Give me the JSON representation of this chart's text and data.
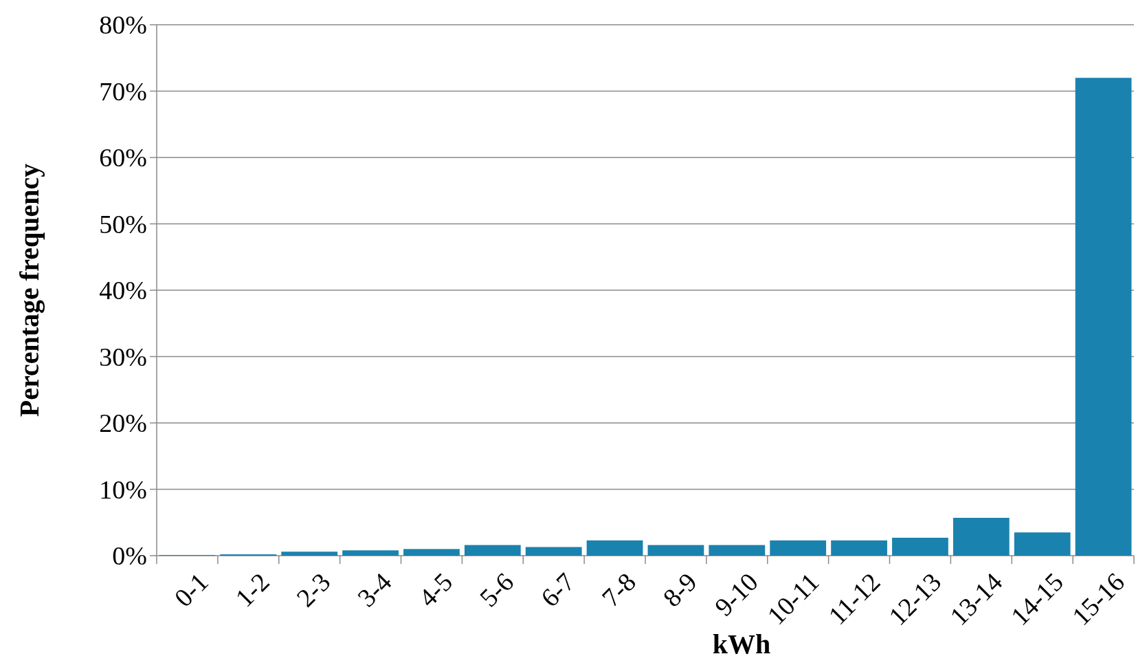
{
  "chart_data": {
    "type": "bar",
    "xlabel": "kWh",
    "ylabel": "Percentage frequency",
    "categories": [
      "0-1",
      "1-2",
      "2-3",
      "3-4",
      "4-5",
      "5-6",
      "6-7",
      "7-8",
      "8-9",
      "9-10",
      "10-11",
      "11-12",
      "12-13",
      "13-14",
      "14-15",
      "15-16"
    ],
    "values": [
      0.1,
      0.2,
      0.6,
      0.8,
      1.0,
      1.6,
      1.3,
      2.3,
      1.6,
      1.6,
      2.3,
      2.3,
      2.7,
      5.7,
      3.5,
      72
    ],
    "color": "#1a82ae",
    "ylim": [
      0,
      80
    ],
    "yticks": [
      {
        "value": 0,
        "label": "0%"
      },
      {
        "value": 10,
        "label": "10%"
      },
      {
        "value": 20,
        "label": "20%"
      },
      {
        "value": 30,
        "label": "30%"
      },
      {
        "value": 40,
        "label": "40%"
      },
      {
        "value": 50,
        "label": "50%"
      },
      {
        "value": 60,
        "label": "60%"
      },
      {
        "value": 70,
        "label": "70%"
      },
      {
        "value": 80,
        "label": "80%"
      }
    ],
    "grid": "y"
  }
}
